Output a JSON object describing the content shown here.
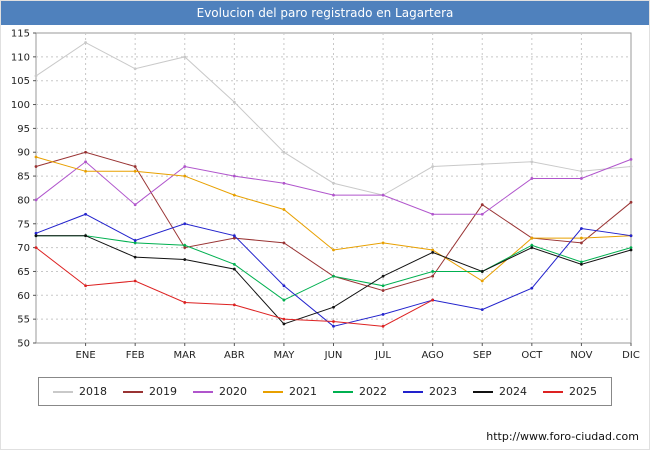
{
  "header": {
    "title": "Evolucion del paro registrado en Lagartera"
  },
  "footer": {
    "url": "http://www.foro-ciudad.com"
  },
  "chart_data": {
    "type": "line",
    "title": "Evolucion del paro registrado en Lagartera",
    "x_labels": [
      "ENE",
      "FEB",
      "MAR",
      "ABR",
      "MAY",
      "JUN",
      "JUL",
      "AGO",
      "SEP",
      "OCT",
      "NOV",
      "DIC"
    ],
    "first_point_unlabeled": true,
    "ylim": [
      50,
      115
    ],
    "y_step": 5,
    "grid": true,
    "legend_position": "bottom",
    "series": [
      {
        "name": "2018",
        "color": "#c9c9c9",
        "values": [
          106,
          113,
          107.5,
          110,
          100.5,
          90,
          83.5,
          81,
          87,
          87.5,
          88,
          86,
          87
        ]
      },
      {
        "name": "2019",
        "color": "#993333",
        "values": [
          87,
          90,
          87,
          70,
          72,
          71,
          64,
          61,
          64,
          79,
          72,
          71,
          79.5
        ]
      },
      {
        "name": "2020",
        "color": "#b055cc",
        "values": [
          80,
          88,
          79,
          87,
          85,
          83.5,
          81,
          81,
          77,
          77,
          84.5,
          84.5,
          88.5
        ]
      },
      {
        "name": "2021",
        "color": "#e8a000",
        "values": [
          89,
          86,
          86,
          85,
          81,
          78,
          69.5,
          71,
          69.5,
          63,
          72,
          72,
          72.5
        ]
      },
      {
        "name": "2022",
        "color": "#00b050",
        "values": [
          72.5,
          72.5,
          71,
          70.5,
          66.5,
          59,
          64,
          62,
          65,
          65,
          70.5,
          67,
          70
        ]
      },
      {
        "name": "2023",
        "color": "#2222cc",
        "values": [
          73,
          77,
          71.5,
          75,
          72.5,
          62,
          53.5,
          56,
          59,
          57,
          61.5,
          74,
          72.5
        ]
      },
      {
        "name": "2024",
        "color": "#111111",
        "values": [
          72.5,
          72.5,
          68,
          67.5,
          65.5,
          54,
          57.5,
          64,
          69,
          65,
          70,
          66.5,
          69.5
        ]
      },
      {
        "name": "2025",
        "color": "#dd2222",
        "values": [
          70,
          62,
          63,
          58.5,
          58,
          55,
          54.5,
          53.5,
          59
        ]
      }
    ]
  }
}
